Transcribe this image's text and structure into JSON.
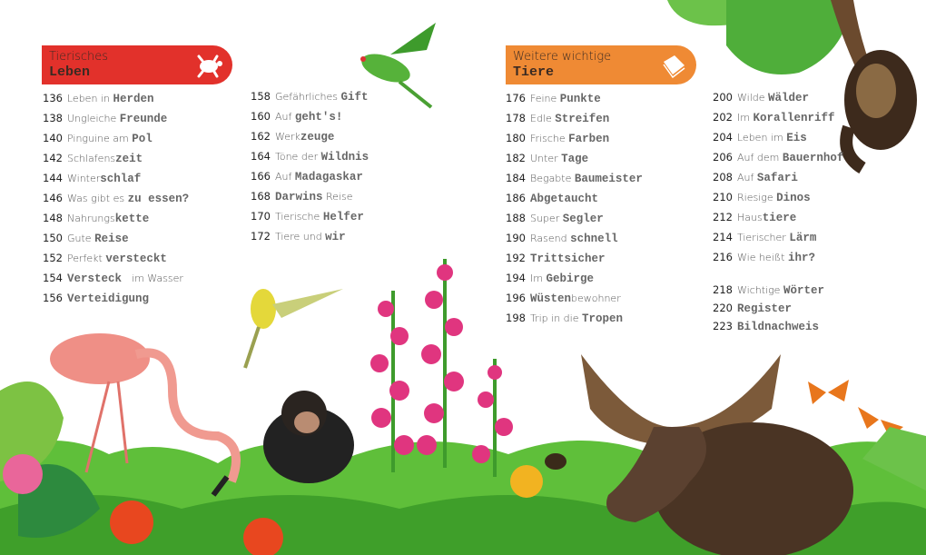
{
  "sections": [
    {
      "title_line1": "Tierisches",
      "title_line2": "Leben",
      "color": "#e2312b",
      "icon": "turtle-icon"
    },
    {
      "title_line1": "Weitere wichtige",
      "title_line2": "Tiere",
      "color": "#ef8a34",
      "icon": "book-icon"
    }
  ],
  "columns": [
    {
      "entries": [
        {
          "page": "136",
          "parts": [
            {
              "t": "Leben in ",
              "s": "h"
            },
            {
              "t": "Herden",
              "s": "b"
            }
          ]
        },
        {
          "page": "138",
          "parts": [
            {
              "t": "Ungleiche ",
              "s": "h"
            },
            {
              "t": "Freunde",
              "s": "b"
            }
          ]
        },
        {
          "page": "140",
          "parts": [
            {
              "t": "Pinguine am ",
              "s": "h"
            },
            {
              "t": "Pol",
              "s": "b"
            }
          ]
        },
        {
          "page": "142",
          "parts": [
            {
              "t": "Schlafens",
              "s": "h"
            },
            {
              "t": "zeit",
              "s": "b"
            }
          ]
        },
        {
          "page": "144",
          "parts": [
            {
              "t": "Winter",
              "s": "h"
            },
            {
              "t": "schlaf",
              "s": "b"
            }
          ]
        },
        {
          "page": "146",
          "parts": [
            {
              "t": "Was gibt es ",
              "s": "h"
            },
            {
              "t": "zu essen?",
              "s": "b"
            }
          ]
        },
        {
          "page": "148",
          "parts": [
            {
              "t": "Nahrungs",
              "s": "h"
            },
            {
              "t": "kette",
              "s": "b"
            }
          ]
        },
        {
          "page": "150",
          "parts": [
            {
              "t": "Gute ",
              "s": "h"
            },
            {
              "t": "Reise",
              "s": "b"
            }
          ]
        },
        {
          "page": "152",
          "parts": [
            {
              "t": "Perfekt ",
              "s": "h"
            },
            {
              "t": "versteckt",
              "s": "b"
            }
          ]
        },
        {
          "page": "154",
          "parts": [
            {
              "t": "Versteck ",
              "s": "b"
            },
            {
              "t": " im Wasser",
              "s": "h"
            }
          ]
        },
        {
          "page": "156",
          "parts": [
            {
              "t": "Verteidigung",
              "s": "b"
            }
          ]
        }
      ]
    },
    {
      "entries": [
        {
          "page": "158",
          "parts": [
            {
              "t": "Gefährliches ",
              "s": "h"
            },
            {
              "t": "Gift",
              "s": "b"
            }
          ]
        },
        {
          "page": "160",
          "parts": [
            {
              "t": "Auf ",
              "s": "h"
            },
            {
              "t": "geht's!",
              "s": "b"
            }
          ]
        },
        {
          "page": "162",
          "parts": [
            {
              "t": "Werk",
              "s": "h"
            },
            {
              "t": "zeuge",
              "s": "b"
            }
          ]
        },
        {
          "page": "164",
          "parts": [
            {
              "t": "Töne der ",
              "s": "h"
            },
            {
              "t": "Wildnis",
              "s": "b"
            }
          ]
        },
        {
          "page": "166",
          "parts": [
            {
              "t": "Auf ",
              "s": "h"
            },
            {
              "t": "Madagaskar",
              "s": "b"
            }
          ]
        },
        {
          "page": "168",
          "parts": [
            {
              "t": "Darwins",
              "s": "b"
            },
            {
              "t": " Reise",
              "s": "h"
            }
          ]
        },
        {
          "page": "170",
          "parts": [
            {
              "t": "Tierische ",
              "s": "h"
            },
            {
              "t": "Helfer",
              "s": "b"
            }
          ]
        },
        {
          "page": "172",
          "parts": [
            {
              "t": "Tiere und ",
              "s": "h"
            },
            {
              "t": "wir",
              "s": "b"
            }
          ]
        }
      ]
    },
    {
      "entries": [
        {
          "page": "176",
          "parts": [
            {
              "t": "Feine ",
              "s": "h"
            },
            {
              "t": "Punkte",
              "s": "b"
            }
          ]
        },
        {
          "page": "178",
          "parts": [
            {
              "t": "Edle ",
              "s": "h"
            },
            {
              "t": "Streifen",
              "s": "b"
            }
          ]
        },
        {
          "page": "180",
          "parts": [
            {
              "t": "Frische ",
              "s": "h"
            },
            {
              "t": "Farben",
              "s": "b"
            }
          ]
        },
        {
          "page": "182",
          "parts": [
            {
              "t": "Unter ",
              "s": "h"
            },
            {
              "t": "Tage",
              "s": "b"
            }
          ]
        },
        {
          "page": "184",
          "parts": [
            {
              "t": "Begabte ",
              "s": "h"
            },
            {
              "t": "Baumeister",
              "s": "b"
            }
          ]
        },
        {
          "page": "186",
          "parts": [
            {
              "t": "Abgetaucht",
              "s": "b"
            }
          ]
        },
        {
          "page": "188",
          "parts": [
            {
              "t": "Super ",
              "s": "h"
            },
            {
              "t": "Segler",
              "s": "b"
            }
          ]
        },
        {
          "page": "190",
          "parts": [
            {
              "t": "Rasend ",
              "s": "h"
            },
            {
              "t": "schnell",
              "s": "b"
            }
          ]
        },
        {
          "page": "192",
          "parts": [
            {
              "t": "Trittsicher",
              "s": "b"
            }
          ]
        },
        {
          "page": "194",
          "parts": [
            {
              "t": "Im ",
              "s": "h"
            },
            {
              "t": "Gebirge",
              "s": "b"
            }
          ]
        },
        {
          "page": "196",
          "parts": [
            {
              "t": "Wüsten",
              "s": "b"
            },
            {
              "t": "bewohner",
              "s": "h"
            }
          ]
        },
        {
          "page": "198",
          "parts": [
            {
              "t": "Trip in die ",
              "s": "h"
            },
            {
              "t": "Tropen",
              "s": "b"
            }
          ]
        }
      ]
    },
    {
      "entries": [
        {
          "page": "200",
          "parts": [
            {
              "t": "Wilde ",
              "s": "h"
            },
            {
              "t": "Wälder",
              "s": "b"
            }
          ]
        },
        {
          "page": "202",
          "parts": [
            {
              "t": "Im ",
              "s": "h"
            },
            {
              "t": "Korallenriff",
              "s": "b"
            }
          ]
        },
        {
          "page": "204",
          "parts": [
            {
              "t": "Leben im ",
              "s": "h"
            },
            {
              "t": "Eis",
              "s": "b"
            }
          ]
        },
        {
          "page": "206",
          "parts": [
            {
              "t": "Auf dem ",
              "s": "h"
            },
            {
              "t": "Bauernhof",
              "s": "b"
            }
          ]
        },
        {
          "page": "208",
          "parts": [
            {
              "t": "Auf ",
              "s": "h"
            },
            {
              "t": "Safari",
              "s": "b"
            }
          ]
        },
        {
          "page": "210",
          "parts": [
            {
              "t": "Riesige ",
              "s": "h"
            },
            {
              "t": "Dinos",
              "s": "b"
            }
          ]
        },
        {
          "page": "212",
          "parts": [
            {
              "t": "Haus",
              "s": "h"
            },
            {
              "t": "tiere",
              "s": "b"
            }
          ]
        },
        {
          "page": "214",
          "parts": [
            {
              "t": "Tierischer ",
              "s": "h"
            },
            {
              "t": "Lärm",
              "s": "b"
            }
          ]
        },
        {
          "page": "216",
          "parts": [
            {
              "t": "Wie heißt ",
              "s": "h"
            },
            {
              "t": "ihr?",
              "s": "b"
            }
          ]
        },
        {
          "page": "218",
          "parts": [
            {
              "t": "Wichtige ",
              "s": "h"
            },
            {
              "t": "Wörter",
              "s": "b"
            }
          ]
        },
        {
          "page": "220",
          "parts": [
            {
              "t": "Register",
              "s": "b"
            }
          ]
        },
        {
          "page": "223",
          "parts": [
            {
              "t": "Bildnachweis",
              "s": "b"
            }
          ]
        }
      ]
    }
  ]
}
